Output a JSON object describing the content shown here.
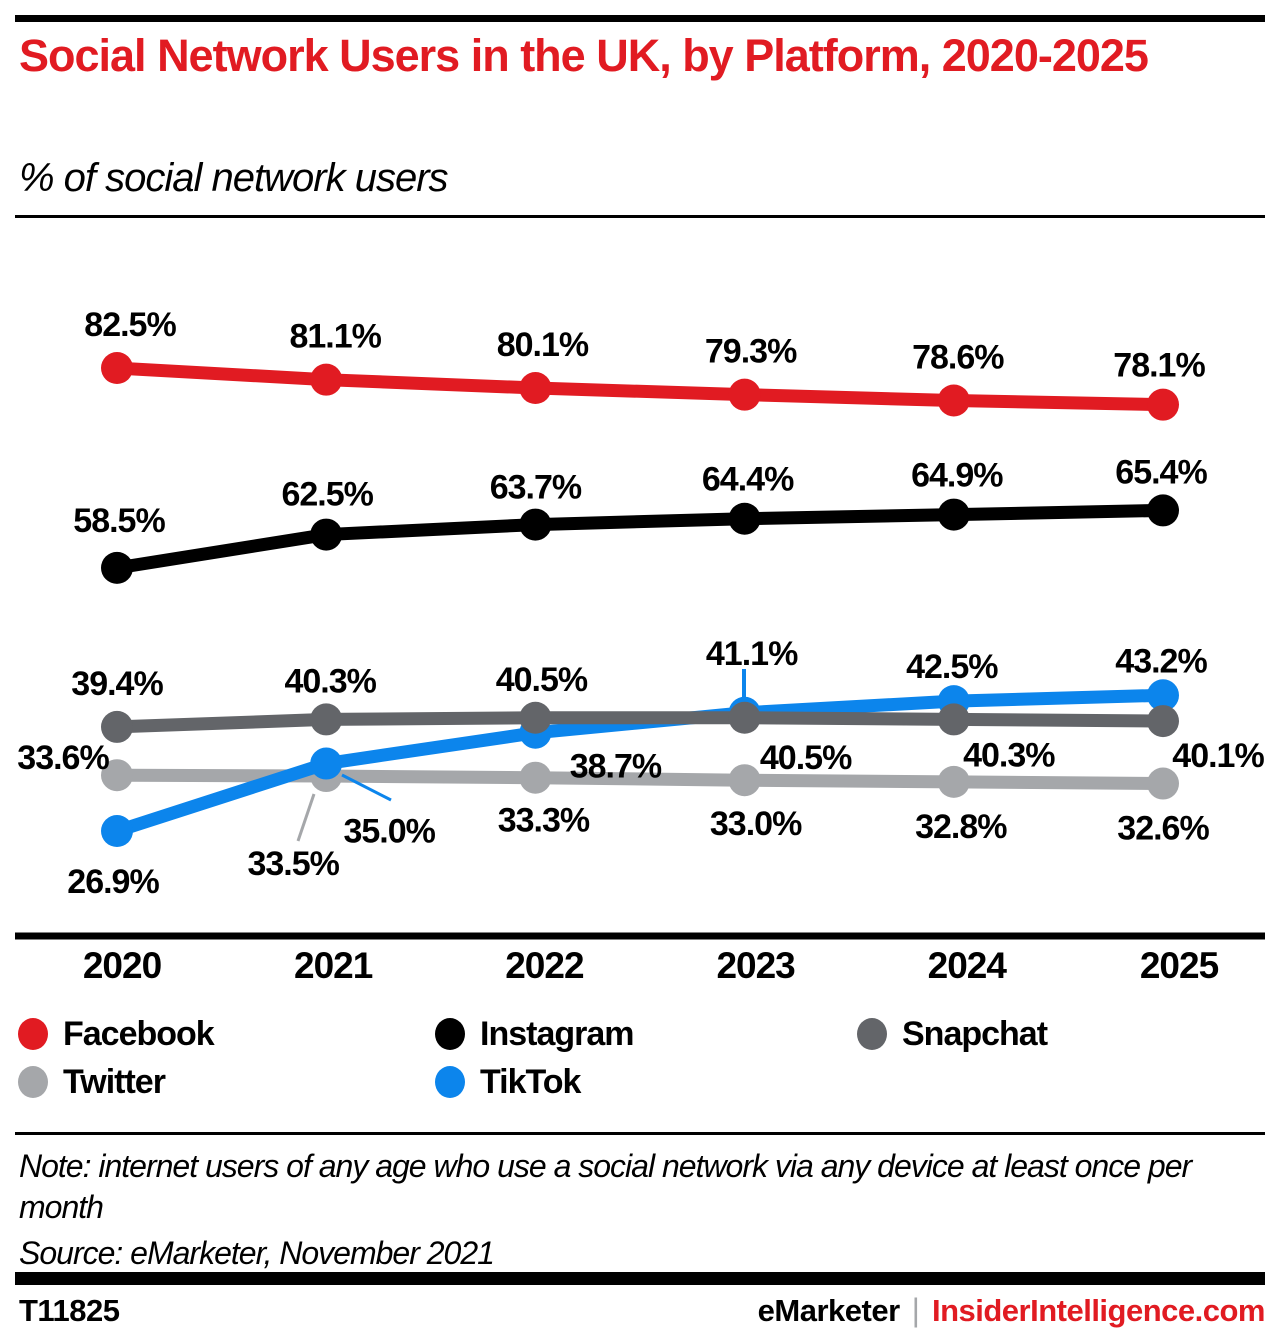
{
  "chart_data": {
    "type": "line",
    "title": "Social Network Users in the UK, by Platform, 2020-2025",
    "subtitle": "% of social network users",
    "categories": [
      "2020",
      "2021",
      "2022",
      "2023",
      "2024",
      "2025"
    ],
    "value_suffix": "%",
    "ylim": [
      20,
      90
    ],
    "grid": false,
    "legend_position": "bottom",
    "series": [
      {
        "name": "Facebook",
        "color": "#e11b22",
        "values": [
          82.5,
          81.1,
          80.1,
          79.3,
          78.6,
          78.1
        ],
        "label_offsets": [
          [
            13,
            -32
          ],
          [
            9,
            -32
          ],
          [
            7,
            -32
          ],
          [
            6,
            -32
          ],
          [
            4,
            -32
          ],
          [
            -4,
            -28
          ]
        ]
      },
      {
        "name": "Instagram",
        "color": "#000000",
        "values": [
          58.5,
          62.5,
          63.7,
          64.4,
          64.9,
          65.4
        ],
        "label_offsets": [
          [
            2,
            -36
          ],
          [
            1,
            -29
          ],
          [
            0,
            -26
          ],
          [
            3,
            -28
          ],
          [
            3,
            -28
          ],
          [
            -2,
            -27
          ]
        ]
      },
      {
        "name": "Snapchat",
        "color": "#636569",
        "values": [
          39.4,
          40.3,
          40.5,
          40.5,
          40.3,
          40.1
        ],
        "label_offsets": [
          [
            0,
            -32
          ],
          [
            4,
            -27
          ],
          [
            6,
            -27
          ],
          [
            61,
            51
          ],
          [
            55,
            47
          ],
          [
            55,
            46
          ]
        ]
      },
      {
        "name": "Twitter",
        "color": "#a5a7aa",
        "values": [
          33.6,
          33.5,
          33.3,
          33.0,
          32.8,
          32.6
        ],
        "label_offsets": [
          [
            -54,
            -6
          ],
          [
            -33,
            99
          ],
          [
            8,
            54
          ],
          [
            11,
            55
          ],
          [
            7,
            56
          ],
          [
            0,
            56
          ]
        ]
      },
      {
        "name": "TikTok",
        "color": "#0c85ec",
        "values": [
          26.9,
          35.0,
          38.7,
          41.1,
          42.5,
          43.2
        ],
        "label_offsets": [
          [
            -4,
            62
          ],
          [
            63,
            79
          ],
          [
            80,
            45
          ],
          [
            7,
            -48
          ],
          [
            -2,
            -23
          ],
          [
            -2,
            -23
          ]
        ]
      }
    ],
    "draw_order": [
      "Twitter",
      "TikTok",
      "Snapchat",
      "Instagram",
      "Facebook"
    ],
    "callouts": [
      {
        "from": [
          314,
          794
        ],
        "to": [
          298,
          841
        ],
        "color": "#a5a7aa",
        "width": 3
      },
      {
        "from": [
          342,
          775
        ],
        "to": [
          391,
          800
        ],
        "color": "#0c85ec",
        "width": 3
      },
      {
        "from": [
          744,
          669
        ],
        "to": [
          744,
          700
        ],
        "color": "#0c85ec",
        "width": 4
      }
    ]
  },
  "note": {
    "text": "Note: internet users of any age who use a social network via any device at least once per month",
    "source": "Source: eMarketer, November 2021"
  },
  "footer": {
    "chart_id": "T11825",
    "brand": "eMarketer",
    "divider": "|",
    "site": "InsiderIntelligence.com"
  }
}
